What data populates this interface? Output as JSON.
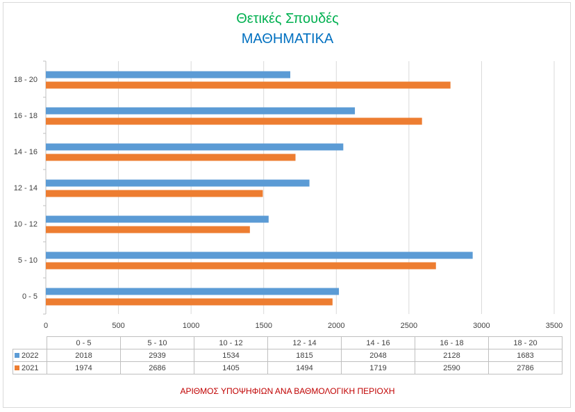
{
  "chart_data": {
    "type": "bar",
    "orientation": "horizontal",
    "title": "Θετικές Σπουδές",
    "subtitle": "ΜΑΘΗΜΑΤΙΚΑ",
    "xlabel": "ΑΡΙΘΜΟΣ ΥΠΟΨΗΦΙΩΝ ΑΝΑ ΒΑΘΜΟΛΟΓΙΚΗ ΠΕΡΙΟΧΗ",
    "ylabel": "",
    "categories": [
      "0 - 5",
      "5 - 10",
      "10 - 12",
      "12 - 14",
      "14 - 16",
      "16 - 18",
      "18 - 20"
    ],
    "series": [
      {
        "name": "2022",
        "color": "#5b9bd5",
        "values": [
          2018,
          2939,
          1534,
          1815,
          2048,
          2128,
          1683
        ]
      },
      {
        "name": "2021",
        "color": "#ed7d31",
        "values": [
          1974,
          2686,
          1405,
          1494,
          1719,
          2590,
          2786
        ]
      }
    ],
    "xlim": [
      0,
      3500
    ],
    "xticks": [
      "0",
      "500",
      "1000",
      "1500",
      "2000",
      "2500",
      "3000",
      "3500"
    ],
    "grid": true,
    "legend": "data-table"
  }
}
